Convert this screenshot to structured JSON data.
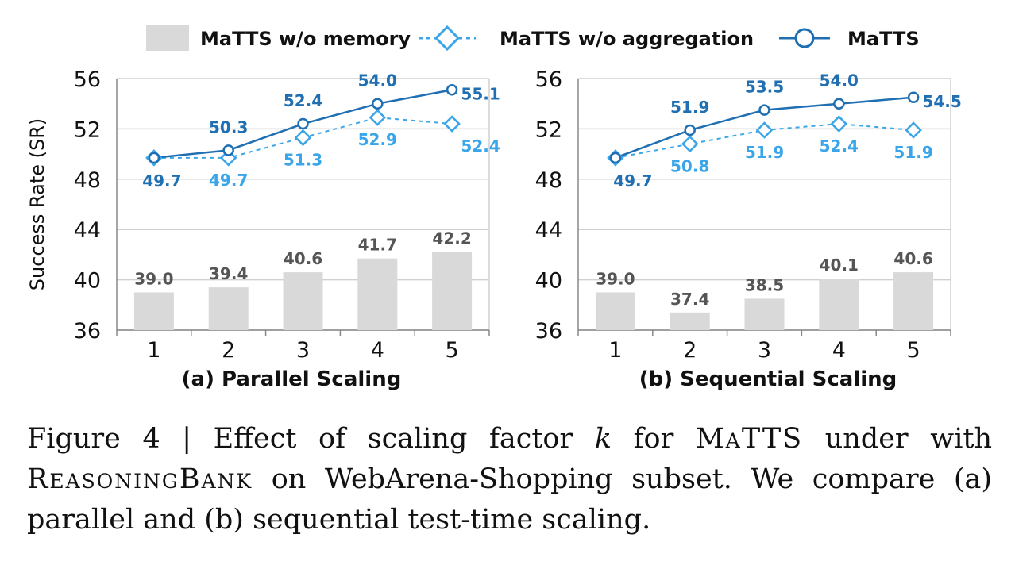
{
  "legend": {
    "items": [
      {
        "label": "MaTTS w/o memory",
        "kind": "bar",
        "color": "#d9d9d9"
      },
      {
        "label": "MaTTS w/o aggregation",
        "kind": "dashed-diamond",
        "color": "#3aa5e8"
      },
      {
        "label": "MaTTS",
        "kind": "solid-circle",
        "color": "#1f6fb2"
      }
    ]
  },
  "chart_data": [
    {
      "type": "bar+line",
      "title": "(a) Parallel Scaling",
      "ylabel": "Success Rate (SR)",
      "ylim": [
        36,
        56
      ],
      "yticks": [
        "36",
        "40",
        "44",
        "48",
        "52",
        "56"
      ],
      "categories": [
        "1",
        "2",
        "3",
        "4",
        "5"
      ],
      "grid": true,
      "series": [
        {
          "name": "MaTTS w/o memory",
          "kind": "bar",
          "values": [
            39.0,
            39.4,
            40.6,
            41.7,
            42.2
          ],
          "labels": [
            "39.0",
            "39.4",
            "40.6",
            "41.7",
            "42.2"
          ]
        },
        {
          "name": "MaTTS w/o aggregation",
          "kind": "line-dashed",
          "values": [
            49.7,
            49.7,
            51.3,
            52.9,
            52.4
          ],
          "labels": [
            "",
            "49.7",
            "51.3",
            "52.9",
            "52.4"
          ]
        },
        {
          "name": "MaTTS",
          "kind": "line",
          "values": [
            49.7,
            50.3,
            52.4,
            54.0,
            55.1
          ],
          "labels": [
            "49.7",
            "50.3",
            "52.4",
            "54.0",
            "55.1"
          ]
        }
      ]
    },
    {
      "type": "bar+line",
      "title": "(b) Sequential Scaling",
      "ylabel": "",
      "ylim": [
        36,
        56
      ],
      "yticks": [
        "36",
        "40",
        "44",
        "48",
        "52",
        "56"
      ],
      "categories": [
        "1",
        "2",
        "3",
        "4",
        "5"
      ],
      "grid": true,
      "series": [
        {
          "name": "MaTTS w/o memory",
          "kind": "bar",
          "values": [
            39.0,
            37.4,
            38.5,
            40.1,
            40.6
          ],
          "labels": [
            "39.0",
            "37.4",
            "38.5",
            "40.1",
            "40.6"
          ]
        },
        {
          "name": "MaTTS w/o aggregation",
          "kind": "line-dashed",
          "values": [
            49.7,
            50.8,
            51.9,
            52.4,
            51.9
          ],
          "labels": [
            "",
            "50.8",
            "51.9",
            "52.4",
            "51.9"
          ]
        },
        {
          "name": "MaTTS",
          "kind": "line",
          "values": [
            49.7,
            51.9,
            53.5,
            54.0,
            54.5
          ],
          "labels": [
            "49.7",
            "51.9",
            "53.5",
            "54.0",
            "54.5"
          ]
        }
      ]
    }
  ],
  "caption": {
    "prefix": "Figure 4 | Effect of scaling factor ",
    "var": "k",
    "mid1": " for ",
    "method": "MaTTS",
    "mid2": " under with ",
    "bank": "ReasoningBank",
    "suffix": " on WebArena-Shopping subset. We compare (a) parallel and (b) sequential test-time scaling."
  }
}
